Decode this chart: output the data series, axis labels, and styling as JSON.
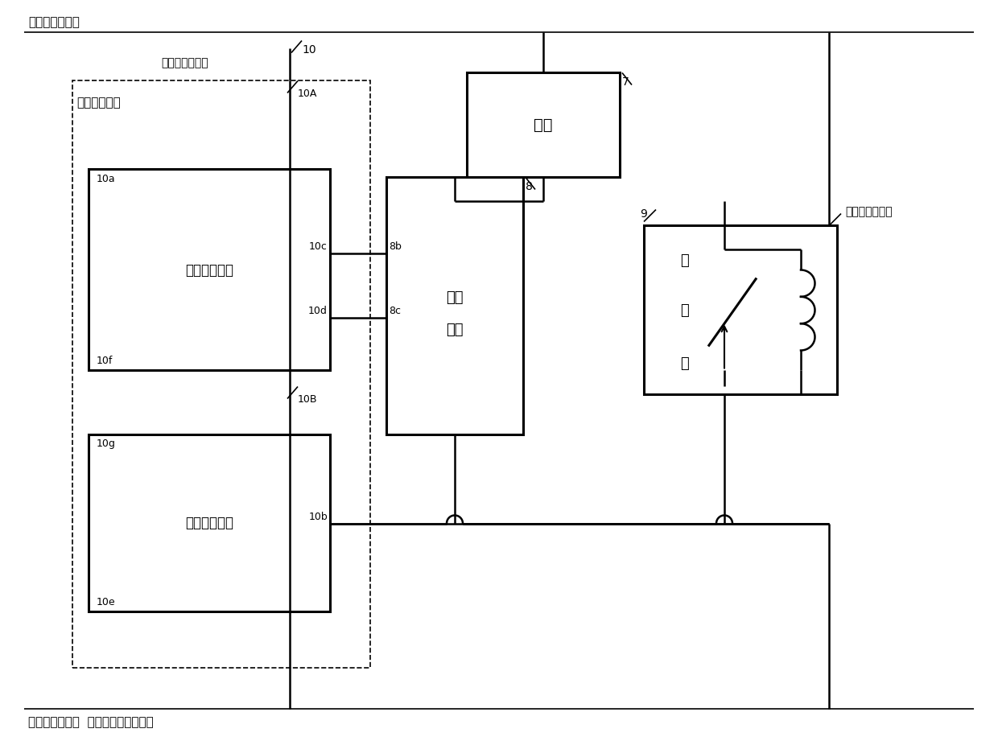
{
  "bg_color": "#ffffff",
  "top_label": "第一外接电源＋",
  "bottom_label": "第一外接电源－  （第二外接电源－）",
  "label_10": "10",
  "label_10A": "10A",
  "label_10B": "10B",
  "label_10a": "10a",
  "label_10b": "10b",
  "label_10c": "10c",
  "label_10d": "10d",
  "label_10e": "10e",
  "label_10f": "10f",
  "label_10g": "10g",
  "label_7": "7",
  "label_8": "8",
  "label_8b": "8b",
  "label_8c": "8c",
  "label_9": "9",
  "label_fuzai": "负载",
  "label_kaiguan_line1": "开关",
  "label_kaiguan_line2": "电路",
  "label_jidianqi_line1": "继",
  "label_jidianqi_line2": "电",
  "label_jidianqi_line3": "器",
  "label_danyuan": "单源驱动电路",
  "label_diyi": "第一驱动模块",
  "label_dier": "第二驱动模块",
  "label_dierwai_top": "第二外接电源＋",
  "label_dierwai_right": "第二外接电源＋"
}
